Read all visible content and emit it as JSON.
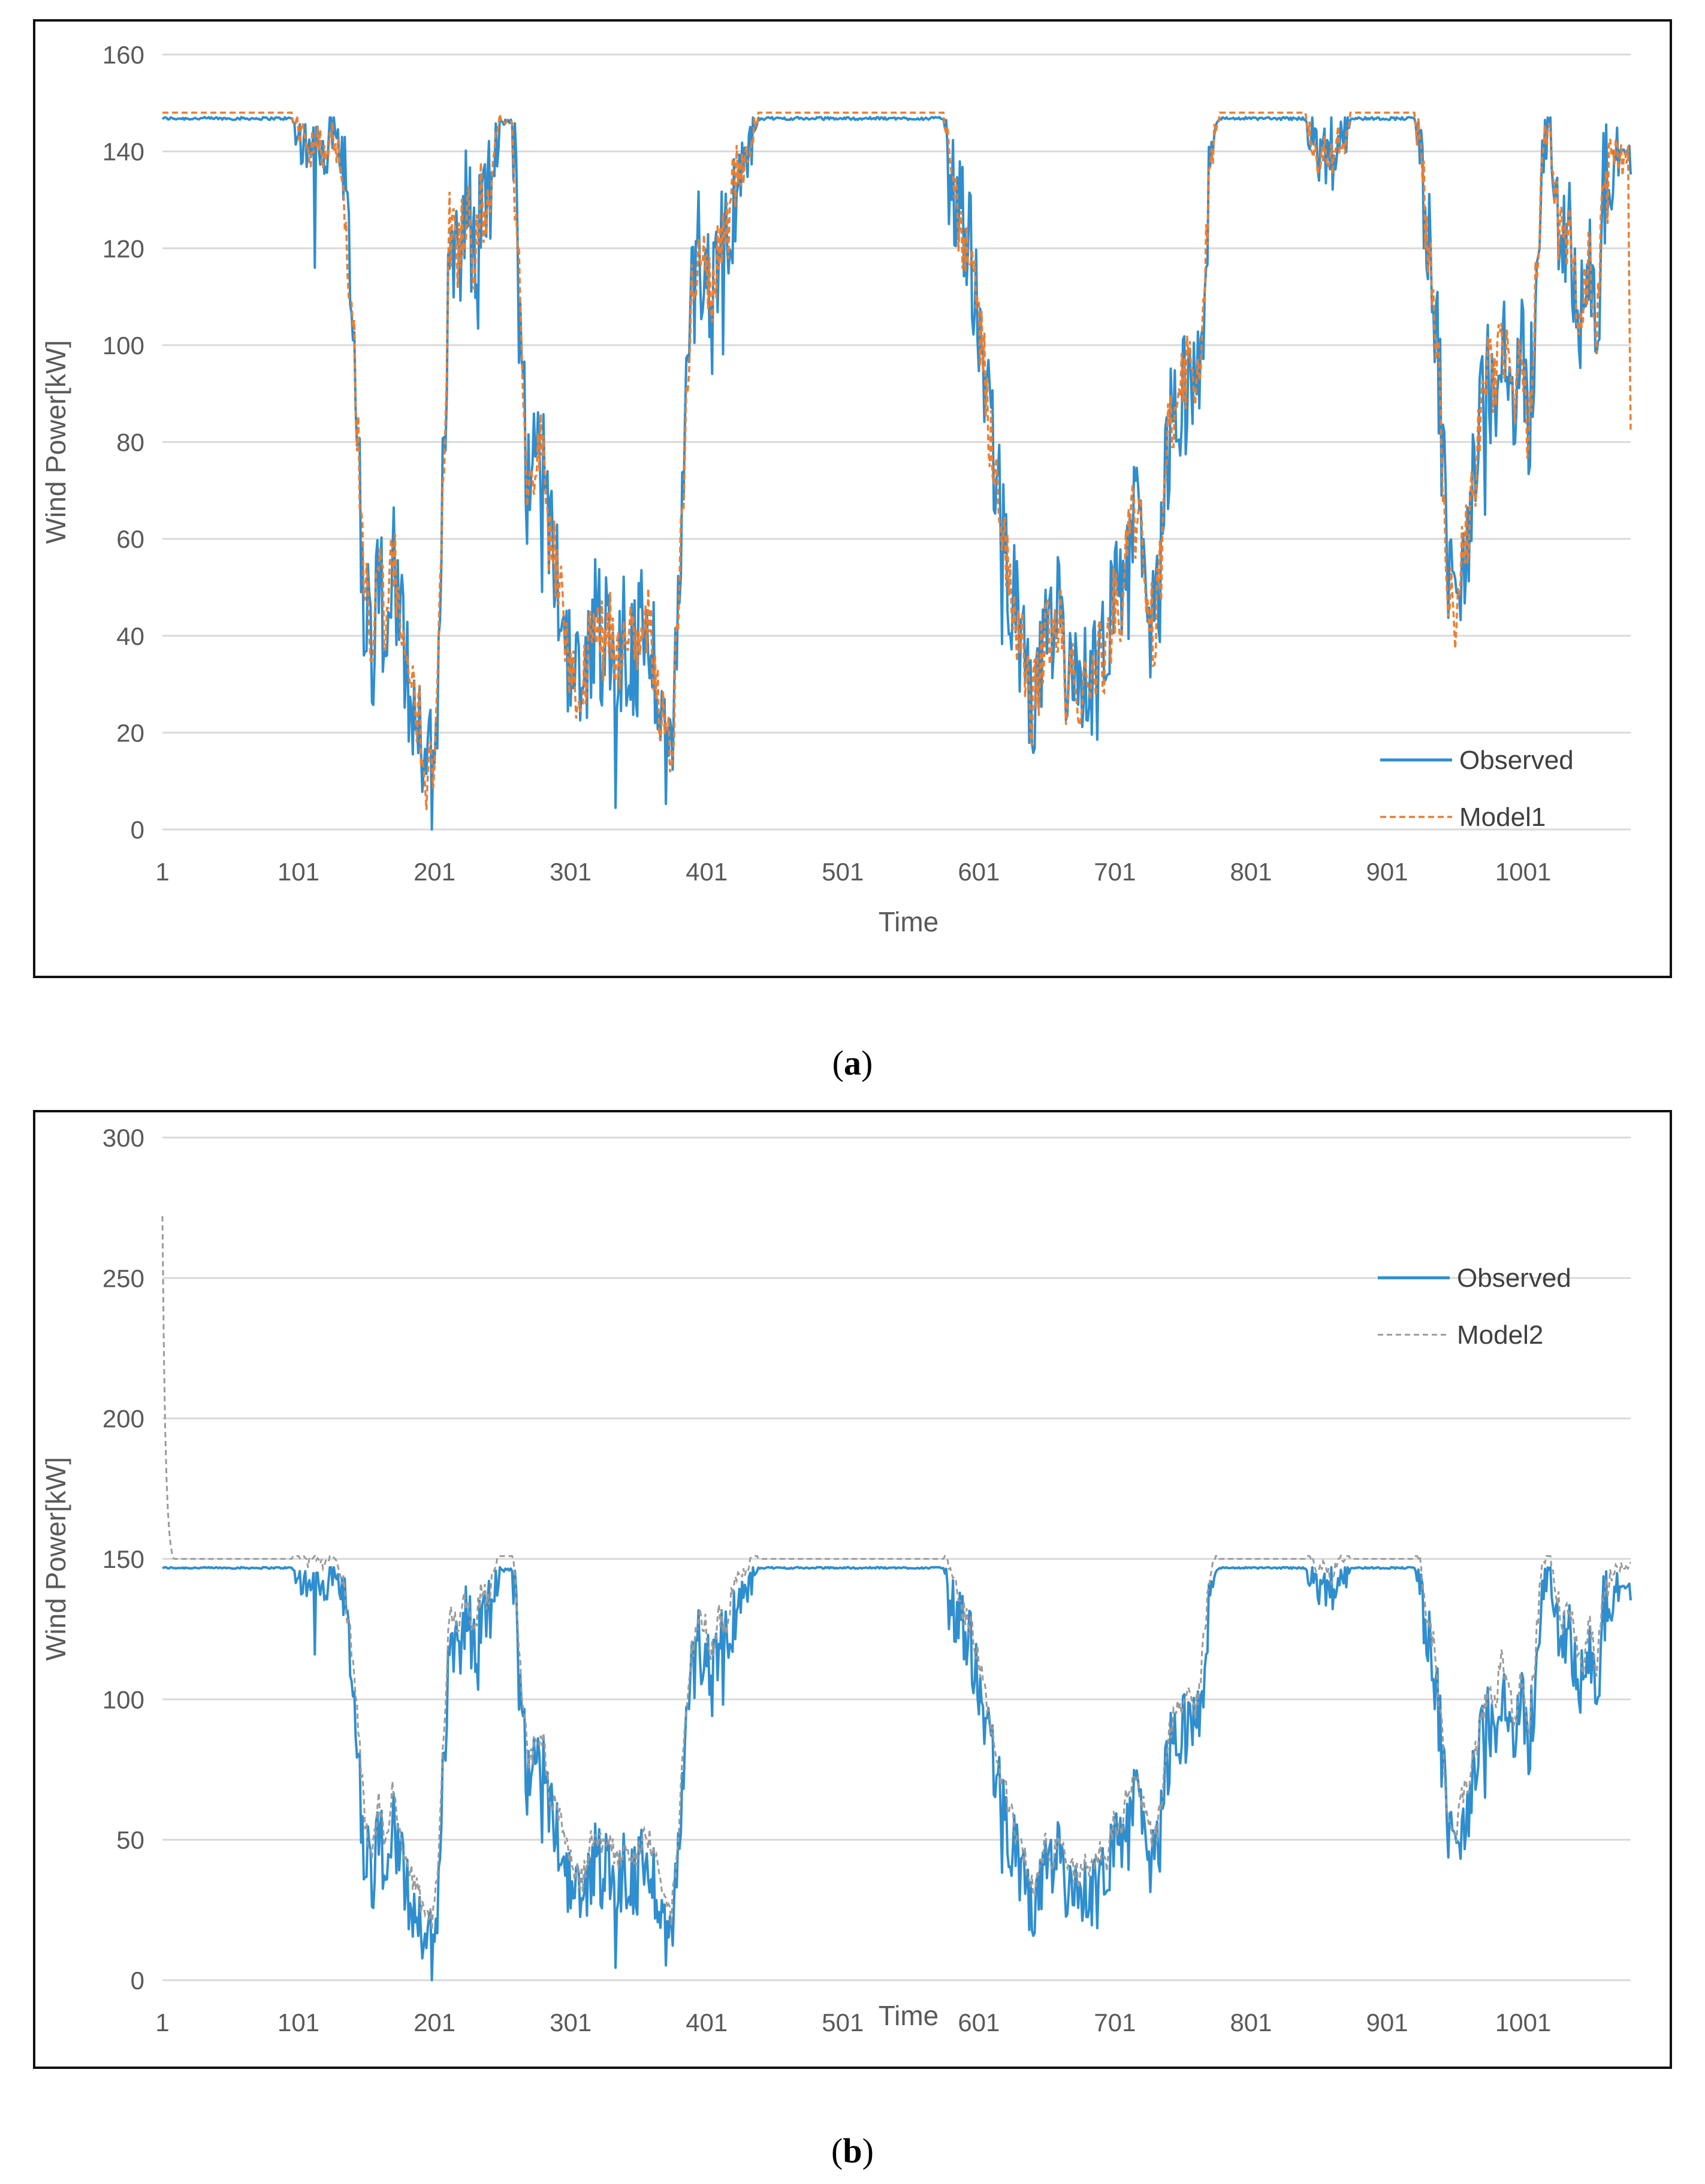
{
  "figure": {
    "caption_a_letter": "a",
    "caption_b_letter": "b"
  },
  "chart_data": [
    {
      "type": "line",
      "panel": "a",
      "xlabel": "Time",
      "ylabel": "Wind Power[kW]",
      "ylim": [
        0,
        160
      ],
      "yticks": [
        0,
        20,
        40,
        60,
        80,
        100,
        120,
        140,
        160
      ],
      "xlim": [
        1,
        1080
      ],
      "xticks": [
        1,
        101,
        201,
        301,
        401,
        501,
        601,
        701,
        801,
        901,
        1001
      ],
      "grid": "horizontal",
      "legend_position": "bottom-right",
      "colors": {
        "observed": "#2e8ecf",
        "model": "#ee7d2e"
      },
      "legend": [
        "Observed",
        "Model1"
      ],
      "anchors": [
        [
          1,
          147
        ],
        [
          50,
          147
        ],
        [
          95,
          147
        ],
        [
          100,
          144
        ],
        [
          110,
          140
        ],
        [
          115,
          144
        ],
        [
          120,
          139
        ],
        [
          125,
          145
        ],
        [
          130,
          140
        ],
        [
          135,
          130
        ],
        [
          140,
          110
        ],
        [
          145,
          80
        ],
        [
          150,
          50
        ],
        [
          155,
          35
        ],
        [
          160,
          55
        ],
        [
          165,
          40
        ],
        [
          170,
          58
        ],
        [
          175,
          45
        ],
        [
          180,
          32
        ],
        [
          185,
          28
        ],
        [
          190,
          22
        ],
        [
          195,
          12
        ],
        [
          200,
          15
        ],
        [
          203,
          30
        ],
        [
          208,
          80
        ],
        [
          212,
          125
        ],
        [
          218,
          120
        ],
        [
          225,
          130
        ],
        [
          230,
          115
        ],
        [
          235,
          130
        ],
        [
          240,
          128
        ],
        [
          245,
          140
        ],
        [
          250,
          146
        ],
        [
          258,
          146
        ],
        [
          262,
          120
        ],
        [
          266,
          90
        ],
        [
          270,
          70
        ],
        [
          275,
          75
        ],
        [
          280,
          80
        ],
        [
          285,
          60
        ],
        [
          290,
          55
        ],
        [
          295,
          45
        ],
        [
          300,
          35
        ],
        [
          305,
          30
        ],
        [
          310,
          28
        ],
        [
          315,
          40
        ],
        [
          320,
          45
        ],
        [
          325,
          38
        ],
        [
          330,
          42
        ],
        [
          335,
          35
        ],
        [
          340,
          40
        ],
        [
          345,
          38
        ],
        [
          350,
          35
        ],
        [
          355,
          45
        ],
        [
          360,
          40
        ],
        [
          365,
          30
        ],
        [
          370,
          20
        ],
        [
          375,
          14
        ],
        [
          380,
          45
        ],
        [
          385,
          80
        ],
        [
          390,
          110
        ],
        [
          395,
          120
        ],
        [
          400,
          118
        ],
        [
          405,
          108
        ],
        [
          410,
          122
        ],
        [
          415,
          120
        ],
        [
          420,
          130
        ],
        [
          425,
          135
        ],
        [
          430,
          138
        ],
        [
          435,
          144
        ],
        [
          440,
          147
        ],
        [
          520,
          147
        ],
        [
          575,
          147
        ],
        [
          580,
          138
        ],
        [
          585,
          128
        ],
        [
          590,
          122
        ],
        [
          595,
          118
        ],
        [
          600,
          108
        ],
        [
          605,
          95
        ],
        [
          610,
          80
        ],
        [
          615,
          70
        ],
        [
          620,
          60
        ],
        [
          625,
          50
        ],
        [
          630,
          40
        ],
        [
          635,
          35
        ],
        [
          640,
          25
        ],
        [
          645,
          30
        ],
        [
          650,
          42
        ],
        [
          655,
          35
        ],
        [
          660,
          45
        ],
        [
          665,
          30
        ],
        [
          670,
          32
        ],
        [
          675,
          28
        ],
        [
          680,
          35
        ],
        [
          685,
          30
        ],
        [
          690,
          38
        ],
        [
          695,
          33
        ],
        [
          700,
          48
        ],
        [
          705,
          45
        ],
        [
          710,
          58
        ],
        [
          715,
          65
        ],
        [
          720,
          60
        ],
        [
          725,
          48
        ],
        [
          730,
          40
        ],
        [
          735,
          55
        ],
        [
          740,
          80
        ],
        [
          745,
          85
        ],
        [
          750,
          90
        ],
        [
          755,
          95
        ],
        [
          760,
          88
        ],
        [
          765,
          105
        ],
        [
          770,
          135
        ],
        [
          775,
          145
        ],
        [
          780,
          147
        ],
        [
          840,
          147
        ],
        [
          845,
          143
        ],
        [
          850,
          138
        ],
        [
          855,
          140
        ],
        [
          860,
          135
        ],
        [
          865,
          142
        ],
        [
          870,
          143
        ],
        [
          875,
          147
        ],
        [
          920,
          147
        ],
        [
          925,
          143
        ],
        [
          930,
          122
        ],
        [
          935,
          112
        ],
        [
          940,
          88
        ],
        [
          945,
          55
        ],
        [
          950,
          40
        ],
        [
          955,
          55
        ],
        [
          960,
          62
        ],
        [
          965,
          70
        ],
        [
          970,
          85
        ],
        [
          975,
          95
        ],
        [
          980,
          90
        ],
        [
          985,
          105
        ],
        [
          990,
          95
        ],
        [
          995,
          85
        ],
        [
          1000,
          100
        ],
        [
          1005,
          80
        ],
        [
          1010,
          110
        ],
        [
          1015,
          140
        ],
        [
          1020,
          146
        ],
        [
          1025,
          130
        ],
        [
          1030,
          120
        ],
        [
          1035,
          125
        ],
        [
          1040,
          112
        ],
        [
          1045,
          105
        ],
        [
          1050,
          120
        ],
        [
          1055,
          105
        ],
        [
          1060,
          130
        ],
        [
          1065,
          135
        ],
        [
          1070,
          140
        ],
        [
          1075,
          138
        ],
        [
          1080,
          140
        ]
      ]
    },
    {
      "type": "line",
      "panel": "b",
      "xlabel": "Time",
      "ylabel": "Wind Power[kW]",
      "ylim": [
        0,
        300
      ],
      "yticks": [
        0,
        50,
        100,
        150,
        200,
        250,
        300
      ],
      "xlim": [
        1,
        1080
      ],
      "xticks": [
        1,
        101,
        201,
        301,
        401,
        501,
        601,
        701,
        801,
        901,
        1001
      ],
      "grid": "horizontal",
      "legend_position": "top-right",
      "colors": {
        "observed": "#2e8ecf",
        "model": "#9a9a9a"
      },
      "legend": [
        "Observed",
        "Model2"
      ],
      "model_start": 272
    }
  ]
}
